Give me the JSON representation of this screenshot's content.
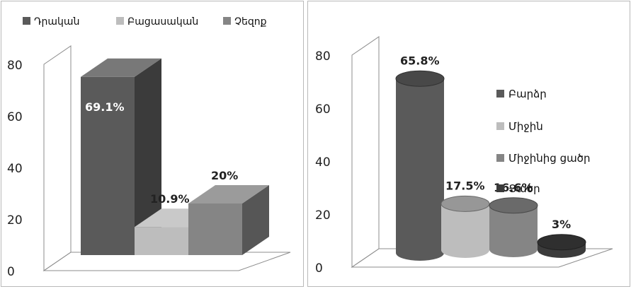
{
  "chart_data": [
    {
      "type": "bar",
      "categories": [
        ""
      ],
      "series": [
        {
          "name": "Դրական",
          "values": [
            69.1
          ],
          "label": "69.1%",
          "color": "#5a5a5a"
        },
        {
          "name": "Բացասական",
          "values": [
            10.9
          ],
          "label": "10.9%",
          "color": "#bdbdbd"
        },
        {
          "name": "Չեզոք",
          "values": [
            20
          ],
          "label": "20%",
          "color": "#858585"
        }
      ],
      "yticks": [
        "0",
        "20",
        "40",
        "60",
        "80"
      ],
      "ylim": [
        0,
        80
      ],
      "legend_position": "top",
      "grid": false,
      "title": "",
      "xlabel": "",
      "ylabel": ""
    },
    {
      "type": "bar",
      "categories": [
        ""
      ],
      "series": [
        {
          "name": "Բարձր",
          "values": [
            65.8
          ],
          "label": "65.8%",
          "color": "#5a5a5a"
        },
        {
          "name": "Միջին",
          "values": [
            17.5
          ],
          "label": "17.5%",
          "color": "#bdbdbd"
        },
        {
          "name": "Միջինից ցածր",
          "values": [
            16.6
          ],
          "label": "16.6%",
          "color": "#858585"
        },
        {
          "name": "Ցածր",
          "values": [
            3
          ],
          "label": "3%",
          "color": "#3b3b3b"
        }
      ],
      "yticks": [
        "0",
        "20",
        "40",
        "60",
        "80"
      ],
      "ylim": [
        0,
        80
      ],
      "legend_position": "right",
      "grid": false,
      "title": "",
      "xlabel": "",
      "ylabel": ""
    }
  ]
}
